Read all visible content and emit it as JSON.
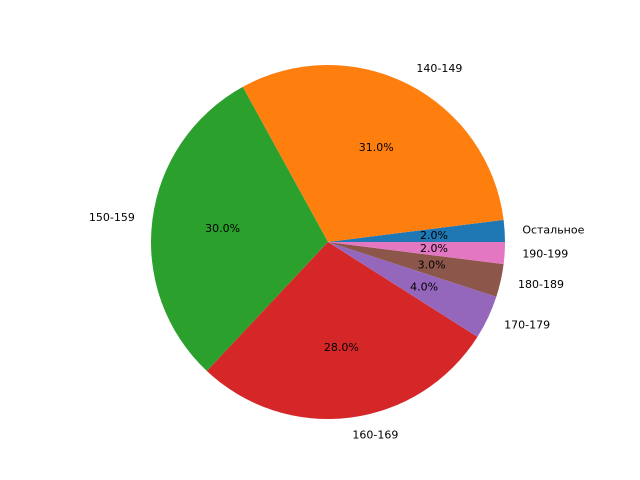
{
  "chart_data": {
    "type": "pie",
    "title": "",
    "start_angle_deg": 0,
    "direction": "counterclockwise",
    "slices": [
      {
        "label": "Остальное",
        "value": 2.0,
        "pct_label": "2.0%",
        "color": "#1f77b4"
      },
      {
        "label": "140-149",
        "value": 31.0,
        "pct_label": "31.0%",
        "color": "#ff7f0e"
      },
      {
        "label": "150-159",
        "value": 30.0,
        "pct_label": "30.0%",
        "color": "#2ca02c"
      },
      {
        "label": "160-169",
        "value": 28.0,
        "pct_label": "28.0%",
        "color": "#d62728"
      },
      {
        "label": "170-179",
        "value": 4.0,
        "pct_label": "4.0%",
        "color": "#9467bd"
      },
      {
        "label": "180-189",
        "value": 3.0,
        "pct_label": "3.0%",
        "color": "#8c564b"
      },
      {
        "label": "190-199",
        "value": 2.0,
        "pct_label": "2.0%",
        "color": "#e377c2"
      }
    ]
  }
}
